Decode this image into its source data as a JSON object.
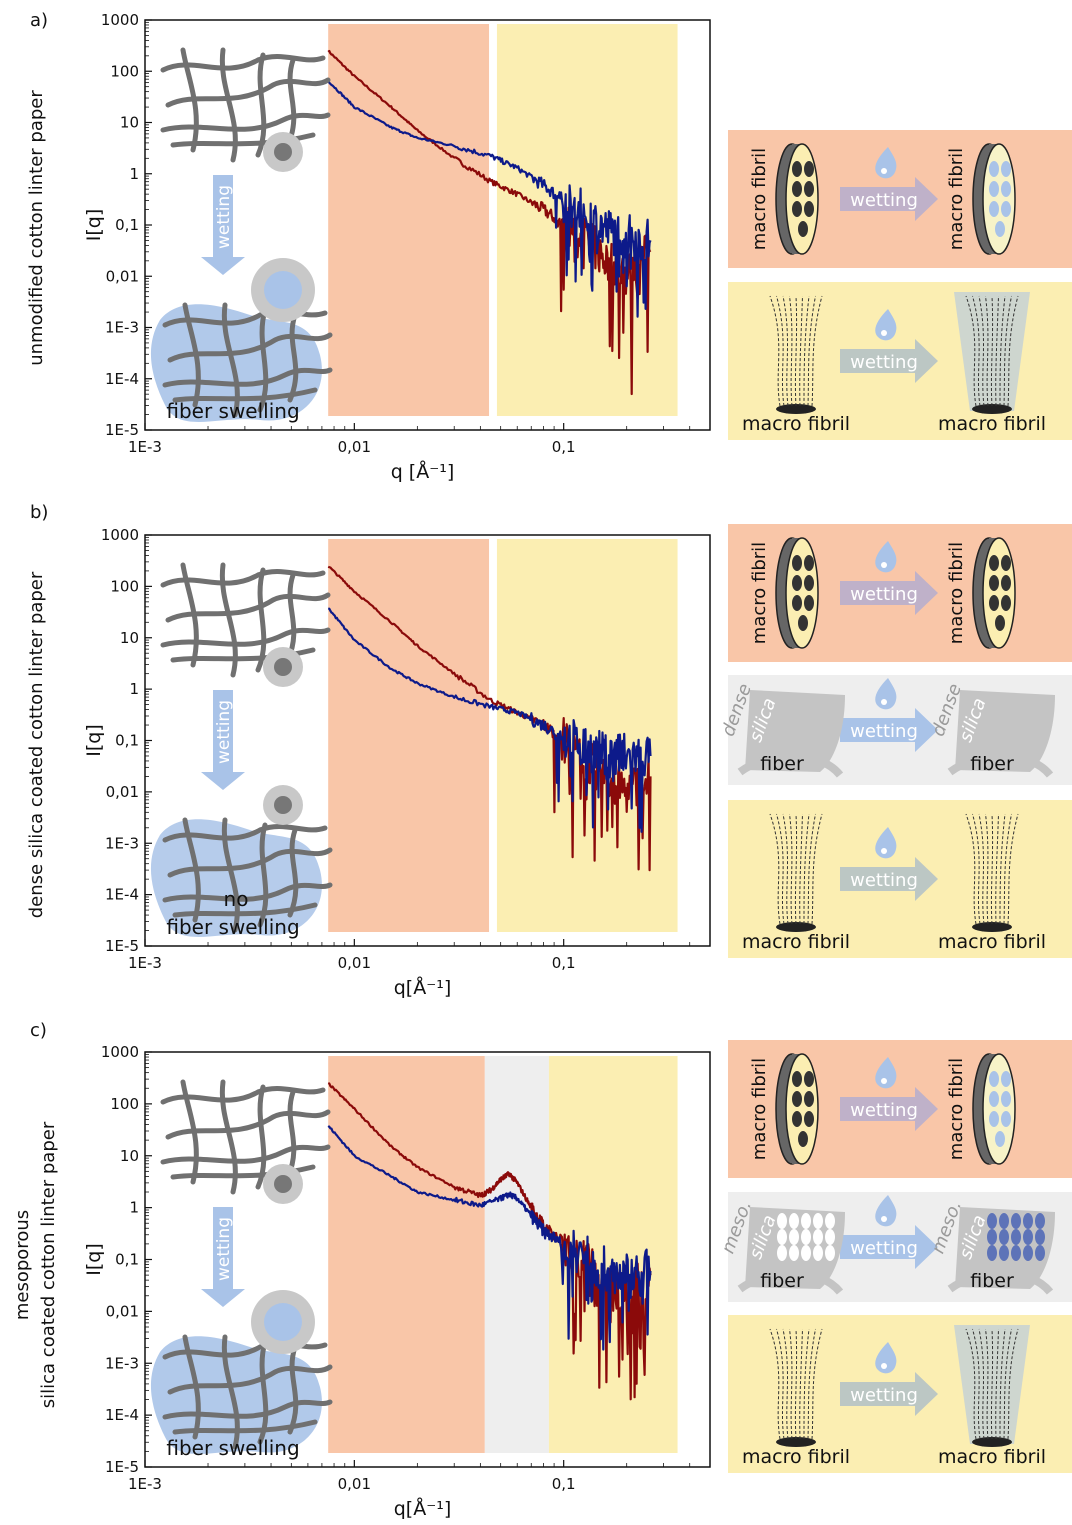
{
  "colors": {
    "orange": "#f9c6a8",
    "yellow": "#fbeeb2",
    "grey": "#eeeeee",
    "red": "#8b0a0a",
    "blue": "#0d1a8a",
    "fiber": "#707070",
    "water": "#a9c3e8",
    "arrow_blue": "#a9c3e8"
  },
  "common": {
    "y_tick_labels": [
      "1000",
      "100",
      "10",
      "1",
      "0,1",
      "0,01",
      "1E-3",
      "1E-4",
      "1E-5"
    ],
    "x_tick_labels": [
      "1E-3",
      "0,01",
      "0,1"
    ],
    "ylabel": "I[q]",
    "wetting": "wetting",
    "macro_fibril": "macro fibril",
    "fiber": "fiber",
    "dense": "dense",
    "silica": "silica",
    "meso": "meso."
  },
  "chart_data": [
    {
      "type": "line",
      "panel_label": "a)",
      "side_title": [
        "unmodified cotton linter paper"
      ],
      "xlabel": "q [Å⁻¹]",
      "ylabel": "I[q]",
      "x_scale": "log",
      "y_scale": "log",
      "xlim": [
        0.001,
        0.5
      ],
      "ylim": [
        1e-05,
        1000
      ],
      "regions": [
        {
          "color": "orange",
          "x": [
            0.0075,
            0.044
          ]
        },
        {
          "color": "yellow",
          "x": [
            0.048,
            0.35
          ]
        }
      ],
      "illustration_text": [
        "fiber swelling"
      ],
      "series": [
        {
          "color": "red",
          "x": [
            0.0075,
            0.01,
            0.015,
            0.02,
            0.03,
            0.045,
            0.06,
            0.08,
            0.1,
            0.13,
            0.16,
            0.2,
            0.26
          ],
          "y": [
            250,
            80,
            20,
            7,
            2,
            0.7,
            0.4,
            0.2,
            0.1,
            0.05,
            0.02,
            0.01,
            0.03
          ]
        },
        {
          "color": "blue",
          "x": [
            0.0075,
            0.01,
            0.015,
            0.02,
            0.03,
            0.045,
            0.06,
            0.08,
            0.1,
            0.13,
            0.16,
            0.2,
            0.26
          ],
          "y": [
            65,
            20,
            8,
            5,
            3.5,
            2.2,
            1.3,
            0.6,
            0.3,
            0.15,
            0.08,
            0.06,
            0.05
          ]
        }
      ]
    },
    {
      "type": "line",
      "panel_label": "b)",
      "side_title": [
        "dense silica coated cotton linter paper"
      ],
      "xlabel": "q[Å⁻¹]",
      "ylabel": "I[q]",
      "x_scale": "log",
      "y_scale": "log",
      "xlim": [
        0.001,
        0.5
      ],
      "ylim": [
        1e-05,
        1000
      ],
      "regions": [
        {
          "color": "orange",
          "x": [
            0.0075,
            0.044
          ]
        },
        {
          "color": "yellow",
          "x": [
            0.048,
            0.35
          ]
        }
      ],
      "illustration_text": [
        "no",
        "fiber swelling"
      ],
      "series": [
        {
          "color": "red",
          "x": [
            0.0075,
            0.01,
            0.015,
            0.02,
            0.03,
            0.045,
            0.06,
            0.08,
            0.1,
            0.13,
            0.16,
            0.2,
            0.26
          ],
          "y": [
            250,
            80,
            20,
            7,
            2,
            0.6,
            0.35,
            0.2,
            0.1,
            0.04,
            0.02,
            0.01,
            0.02
          ]
        },
        {
          "color": "blue",
          "x": [
            0.0075,
            0.01,
            0.015,
            0.02,
            0.03,
            0.045,
            0.06,
            0.08,
            0.1,
            0.13,
            0.16,
            0.2,
            0.26
          ],
          "y": [
            38,
            9,
            2.5,
            1.3,
            0.7,
            0.45,
            0.35,
            0.2,
            0.12,
            0.07,
            0.05,
            0.05,
            0.05
          ]
        }
      ]
    },
    {
      "type": "line",
      "panel_label": "c)",
      "side_title": [
        "mesoporous",
        "silica coated cotton linter paper"
      ],
      "xlabel": "q[Å⁻¹]",
      "ylabel": "I[q]",
      "x_scale": "log",
      "y_scale": "log",
      "xlim": [
        0.001,
        0.5
      ],
      "ylim": [
        1e-05,
        1000
      ],
      "regions": [
        {
          "color": "orange",
          "x": [
            0.0075,
            0.042
          ]
        },
        {
          "color": "grey",
          "x": [
            0.042,
            0.085
          ]
        },
        {
          "color": "yellow",
          "x": [
            0.085,
            0.35
          ]
        }
      ],
      "illustration_text": [
        "fiber swelling"
      ],
      "series": [
        {
          "color": "red",
          "x": [
            0.0075,
            0.01,
            0.015,
            0.02,
            0.03,
            0.04,
            0.045,
            0.05,
            0.055,
            0.06,
            0.07,
            0.08,
            0.1,
            0.13,
            0.16,
            0.2,
            0.26
          ],
          "y": [
            250,
            80,
            15,
            6,
            2.5,
            1.7,
            2.2,
            3.5,
            4.5,
            3,
            1,
            0.45,
            0.2,
            0.08,
            0.03,
            0.02,
            0.05
          ]
        },
        {
          "color": "blue",
          "x": [
            0.0075,
            0.01,
            0.015,
            0.02,
            0.03,
            0.04,
            0.05,
            0.055,
            0.06,
            0.07,
            0.08,
            0.1,
            0.13,
            0.16,
            0.2,
            0.26
          ],
          "y": [
            38,
            10,
            4,
            2,
            1.4,
            1.1,
            1.5,
            1.8,
            1.5,
            0.7,
            0.35,
            0.2,
            0.1,
            0.06,
            0.05,
            0.06
          ]
        }
      ]
    }
  ],
  "schematics": [
    {
      "rows": [
        {
          "bg": "orange",
          "kind": "fibril",
          "left_fill": "#fbeeb2",
          "right_fill": "#f7f3c8",
          "right_dots": "#a9c3e8"
        },
        {
          "bg": "yellow",
          "kind": "tree",
          "right_glow": true
        }
      ]
    },
    {
      "rows": [
        {
          "bg": "orange",
          "kind": "fibril",
          "left_fill": "#fbeeb2",
          "right_fill": "#fbeeb2",
          "right_dots": "#333333"
        },
        {
          "bg": "grey",
          "kind": "dense"
        },
        {
          "bg": "yellow",
          "kind": "tree",
          "right_glow": false
        }
      ]
    },
    {
      "rows": [
        {
          "bg": "orange",
          "kind": "fibril",
          "left_fill": "#fbeeb2",
          "right_fill": "#f7f3c8",
          "right_dots": "#a9c3e8"
        },
        {
          "bg": "grey",
          "kind": "meso"
        },
        {
          "bg": "yellow",
          "kind": "tree",
          "right_glow": true
        }
      ]
    }
  ]
}
